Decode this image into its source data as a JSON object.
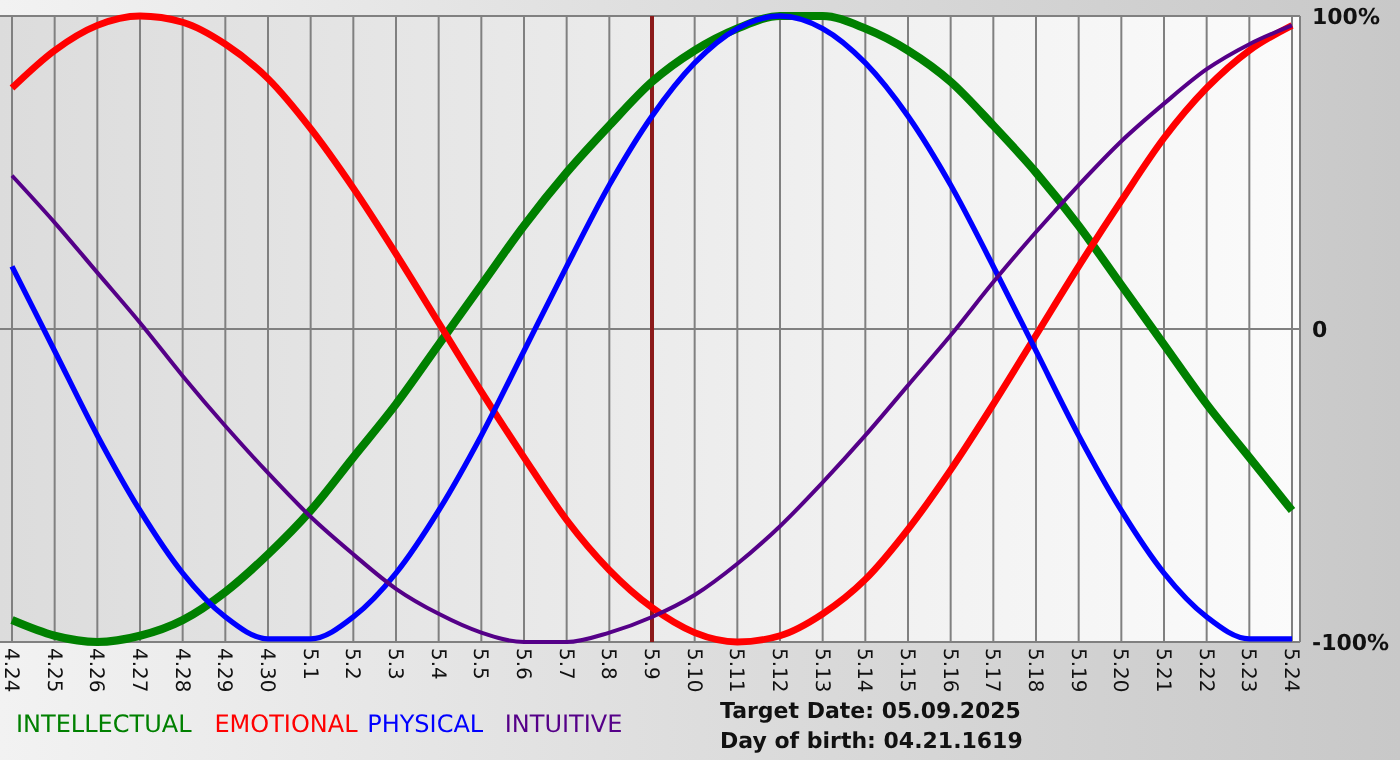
{
  "chart_data": {
    "type": "line",
    "categories": [
      "4.24",
      "4.25",
      "4.26",
      "4.27",
      "4.28",
      "4.29",
      "4.30",
      "5.1",
      "5.2",
      "5.3",
      "5.4",
      "5.5",
      "5.6",
      "5.7",
      "5.8",
      "5.9",
      "5.10",
      "5.11",
      "5.12",
      "5.13",
      "5.14",
      "5.15",
      "5.16",
      "5.17",
      "5.18",
      "5.19",
      "5.20",
      "5.21",
      "5.22",
      "5.23",
      "5.24"
    ],
    "series": [
      {
        "name": "INTELLECTUAL",
        "color": "#008000",
        "values": [
          -93,
          -98,
          -100,
          -98,
          -93,
          -84,
          -72,
          -58,
          -41,
          -24,
          -5,
          14,
          33,
          50,
          65,
          79,
          89,
          96,
          100,
          100,
          96,
          89,
          79,
          65,
          50,
          33,
          14,
          -5,
          -24,
          -41,
          -58
        ]
      },
      {
        "name": "EMOTIONAL",
        "color": "#ff0000",
        "values": [
          77,
          89,
          97,
          100,
          98,
          91,
          80,
          64,
          45,
          24,
          2,
          -20,
          -41,
          -61,
          -77,
          -89,
          -97,
          -100,
          -98,
          -91,
          -80,
          -64,
          -45,
          -24,
          -2,
          20,
          41,
          61,
          77,
          89,
          97
        ]
      },
      {
        "name": "PHYSICAL",
        "color": "#0000ff",
        "values": [
          20,
          -7,
          -34,
          -58,
          -78,
          -92,
          -99,
          -99,
          -92,
          -78,
          -58,
          -34,
          -7,
          20,
          46,
          68,
          85,
          96,
          100,
          96,
          85,
          68,
          46,
          20,
          -7,
          -34,
          -58,
          -78,
          -92,
          -99,
          -99
        ]
      },
      {
        "name": "INTUITIVE",
        "color": "#550088",
        "values": [
          49,
          34,
          18,
          2,
          -15,
          -31,
          -46,
          -60,
          -72,
          -83,
          -91,
          -97,
          -100,
          -100,
          -97,
          -92,
          -85,
          -75,
          -63,
          -49,
          -34,
          -18,
          -2,
          15,
          31,
          46,
          60,
          72,
          83,
          91,
          97
        ]
      }
    ],
    "ylim": [
      -100,
      100
    ],
    "yticks": [
      {
        "value": 100,
        "label": "100%"
      },
      0,
      {
        "value": -100,
        "label": "-100%"
      }
    ],
    "grid": true,
    "legend": "bottom left",
    "ref_lines": [
      {
        "axis": "x",
        "value": "5.9",
        "color": "#8b1a1a"
      }
    ],
    "annotations": [
      "Target Date: 05.09.2025",
      "Day of birth: 04.21.1619"
    ]
  }
}
